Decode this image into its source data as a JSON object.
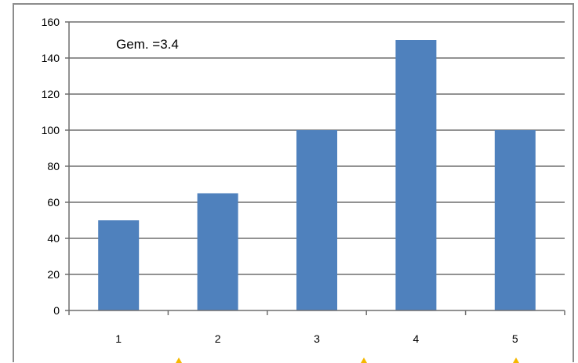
{
  "chart_data": {
    "type": "bar",
    "categories": [
      "1",
      "2",
      "3",
      "4",
      "5"
    ],
    "values": [
      50,
      65,
      100,
      150,
      100
    ],
    "ylim": [
      0,
      160
    ],
    "yticks": [
      0,
      20,
      40,
      60,
      80,
      100,
      120,
      140,
      160
    ],
    "grid": true,
    "annotation": "Gem. =3.4",
    "title": "",
    "xlabel": "",
    "ylabel": "",
    "bar_color": "#4f81bd",
    "grid_color": "#6e6e6e",
    "marker_color": "#f5b800"
  }
}
